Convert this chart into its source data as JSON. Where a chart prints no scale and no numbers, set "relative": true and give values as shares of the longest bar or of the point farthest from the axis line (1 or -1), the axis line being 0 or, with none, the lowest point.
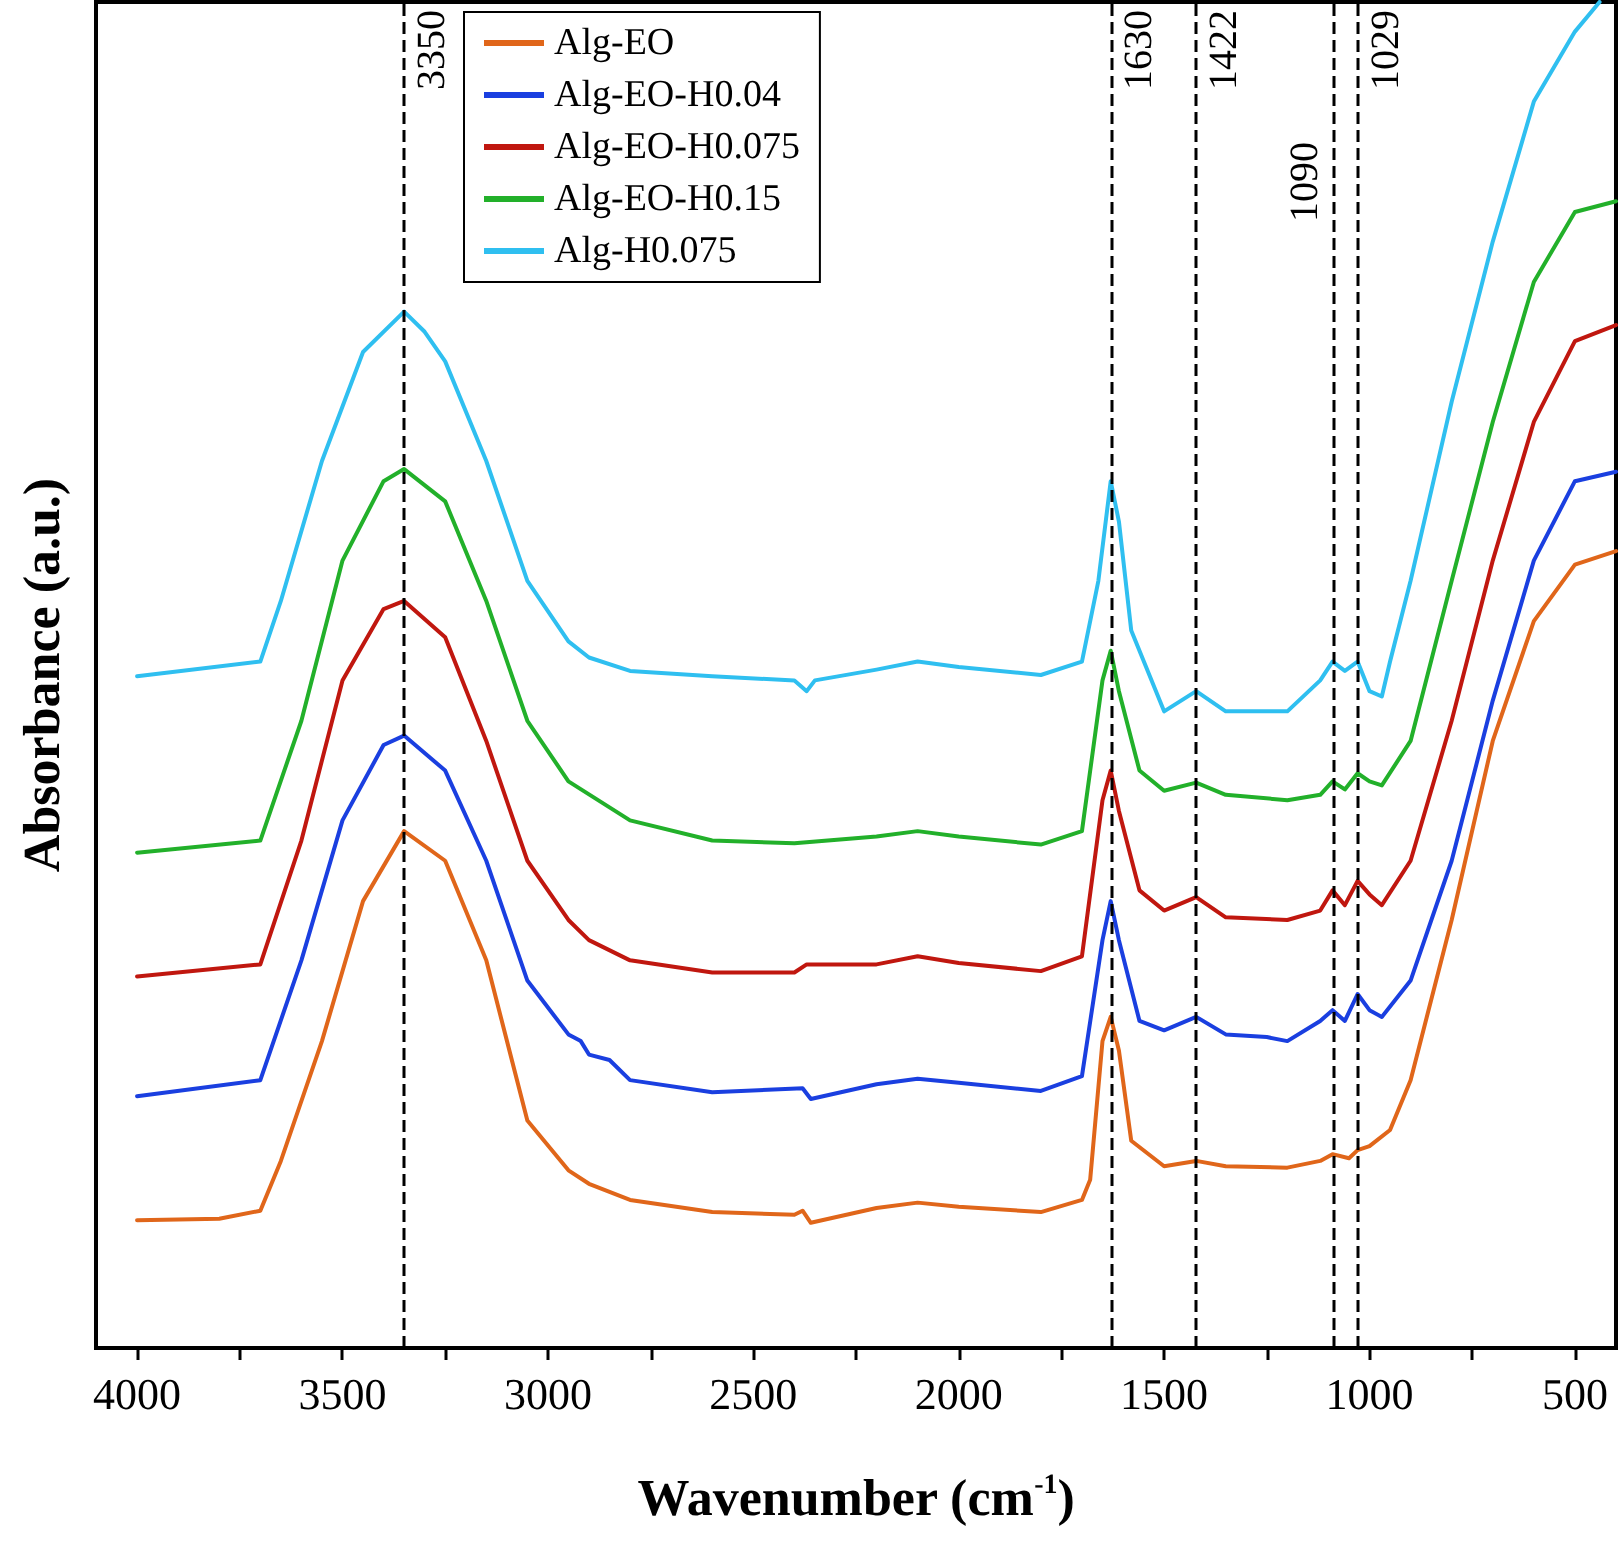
{
  "chart_data": {
    "type": "line",
    "xlabel": "Wavenumber (cm$^{-1}$)",
    "ylabel": "Absorbance (a.u.)",
    "relative": true,
    "tick_labels": "x",
    "grid": false,
    "legend": "top",
    "marker": "none",
    "line_style": "solid",
    "xlim": [
      4100,
      400
    ],
    "xticks": [
      4000,
      {
        "value": 3750,
        "label": null
      },
      3500,
      {
        "value": 3250,
        "label": null
      },
      3000,
      {
        "value": 2750,
        "label": null
      },
      2500,
      {
        "value": 2250,
        "label": null
      },
      2000,
      {
        "value": 1750,
        "label": null
      },
      1500,
      {
        "value": 1250,
        "label": null
      },
      1000,
      {
        "value": 750,
        "label": null
      },
      500
    ],
    "ref_lines": [
      {
        "axis": "x",
        "value": 3350,
        "label": "3350",
        "line_style": "dashed",
        "color": "#000000"
      },
      {
        "axis": "x",
        "value": 1630,
        "label": "1630",
        "line_style": "dashed",
        "color": "#000000"
      },
      {
        "axis": "x",
        "value": 1422,
        "label": "1422",
        "line_style": "dashed",
        "color": "#000000"
      },
      {
        "axis": "x",
        "value": 1090,
        "label": "1090",
        "line_style": "dashed",
        "color": "#000000"
      },
      {
        "axis": "x",
        "value": 1029,
        "label": "1029",
        "line_style": "dashed",
        "color": "#000000"
      }
    ],
    "series": [
      {
        "name": "Alg-EO",
        "color": "#e0661a",
        "x": [
          4000,
          3800,
          3700,
          3650,
          3550,
          3450,
          3350,
          3250,
          3150,
          3050,
          2950,
          2900,
          2800,
          2600,
          2400,
          2380,
          2360,
          2200,
          2100,
          2000,
          1800,
          1700,
          1680,
          1650,
          1630,
          1610,
          1580,
          1500,
          1422,
          1350,
          1200,
          1120,
          1090,
          1050,
          1029,
          1000,
          950,
          900,
          800,
          700,
          600,
          500,
          400
        ],
        "values": [
          0.095,
          0.096,
          0.102,
          0.139,
          0.228,
          0.332,
          0.384,
          0.362,
          0.288,
          0.169,
          0.132,
          0.122,
          0.11,
          0.101,
          0.099,
          0.102,
          0.093,
          0.104,
          0.108,
          0.105,
          0.101,
          0.11,
          0.125,
          0.228,
          0.246,
          0.221,
          0.154,
          0.135,
          0.139,
          0.135,
          0.134,
          0.139,
          0.144,
          0.141,
          0.147,
          0.15,
          0.162,
          0.199,
          0.318,
          0.451,
          0.54,
          0.582,
          0.592
        ]
      },
      {
        "name": "Alg-EO-H0.04",
        "color": "#1a3fe0",
        "x": [
          4000,
          3700,
          3600,
          3500,
          3400,
          3350,
          3250,
          3150,
          3050,
          2950,
          2920,
          2900,
          2850,
          2800,
          2600,
          2380,
          2360,
          2200,
          2100,
          2000,
          1800,
          1700,
          1650,
          1630,
          1610,
          1560,
          1500,
          1422,
          1350,
          1250,
          1200,
          1120,
          1090,
          1060,
          1029,
          1000,
          970,
          900,
          800,
          700,
          600,
          500,
          400
        ],
        "values": [
          0.187,
          0.199,
          0.288,
          0.392,
          0.448,
          0.455,
          0.429,
          0.362,
          0.273,
          0.233,
          0.228,
          0.218,
          0.214,
          0.199,
          0.19,
          0.193,
          0.185,
          0.196,
          0.2,
          0.197,
          0.191,
          0.202,
          0.303,
          0.332,
          0.303,
          0.243,
          0.236,
          0.246,
          0.233,
          0.231,
          0.228,
          0.243,
          0.251,
          0.243,
          0.263,
          0.251,
          0.246,
          0.273,
          0.362,
          0.481,
          0.585,
          0.644,
          0.651
        ]
      },
      {
        "name": "Alg-EO-H0.075",
        "color": "#c0170f",
        "x": [
          4000,
          3700,
          3600,
          3500,
          3400,
          3350,
          3250,
          3150,
          3050,
          2950,
          2900,
          2800,
          2600,
          2400,
          2370,
          2200,
          2100,
          2000,
          1800,
          1700,
          1650,
          1630,
          1610,
          1560,
          1500,
          1422,
          1350,
          1200,
          1120,
          1090,
          1060,
          1029,
          1000,
          970,
          900,
          800,
          700,
          600,
          500,
          400
        ],
        "values": [
          0.276,
          0.285,
          0.377,
          0.496,
          0.549,
          0.555,
          0.528,
          0.451,
          0.362,
          0.318,
          0.303,
          0.288,
          0.279,
          0.279,
          0.285,
          0.285,
          0.291,
          0.286,
          0.28,
          0.291,
          0.407,
          0.429,
          0.399,
          0.34,
          0.325,
          0.335,
          0.32,
          0.318,
          0.325,
          0.34,
          0.329,
          0.347,
          0.337,
          0.329,
          0.362,
          0.466,
          0.585,
          0.688,
          0.748,
          0.76
        ]
      },
      {
        "name": "Alg-EO-H0.15",
        "color": "#22b02a",
        "x": [
          4000,
          3700,
          3600,
          3500,
          3400,
          3350,
          3250,
          3150,
          3050,
          2950,
          2800,
          2600,
          2400,
          2200,
          2100,
          2000,
          1800,
          1700,
          1650,
          1630,
          1610,
          1560,
          1500,
          1422,
          1350,
          1200,
          1120,
          1090,
          1060,
          1029,
          1000,
          970,
          900,
          800,
          700,
          600,
          500,
          400
        ],
        "values": [
          0.368,
          0.377,
          0.466,
          0.585,
          0.644,
          0.653,
          0.629,
          0.555,
          0.466,
          0.421,
          0.392,
          0.377,
          0.375,
          0.38,
          0.384,
          0.38,
          0.374,
          0.384,
          0.496,
          0.518,
          0.488,
          0.429,
          0.414,
          0.42,
          0.411,
          0.407,
          0.411,
          0.421,
          0.415,
          0.427,
          0.421,
          0.418,
          0.451,
          0.57,
          0.688,
          0.792,
          0.844,
          0.852
        ]
      },
      {
        "name": "Alg-H0.075",
        "color": "#2fbff0",
        "x": [
          4000,
          3700,
          3650,
          3550,
          3450,
          3350,
          3300,
          3250,
          3150,
          3050,
          2950,
          2900,
          2800,
          2600,
          2400,
          2370,
          2350,
          2200,
          2100,
          2000,
          1800,
          1700,
          1660,
          1630,
          1610,
          1580,
          1500,
          1422,
          1350,
          1200,
          1120,
          1090,
          1060,
          1029,
          1000,
          970,
          950,
          900,
          800,
          700,
          600,
          500,
          440
        ],
        "values": [
          0.499,
          0.51,
          0.555,
          0.659,
          0.74,
          0.77,
          0.755,
          0.733,
          0.659,
          0.57,
          0.525,
          0.513,
          0.503,
          0.499,
          0.496,
          0.488,
          0.496,
          0.504,
          0.51,
          0.506,
          0.5,
          0.51,
          0.57,
          0.644,
          0.614,
          0.533,
          0.473,
          0.488,
          0.473,
          0.473,
          0.496,
          0.51,
          0.503,
          0.51,
          0.488,
          0.484,
          0.51,
          0.57,
          0.703,
          0.822,
          0.926,
          0.978,
          1.0
        ]
      }
    ]
  }
}
